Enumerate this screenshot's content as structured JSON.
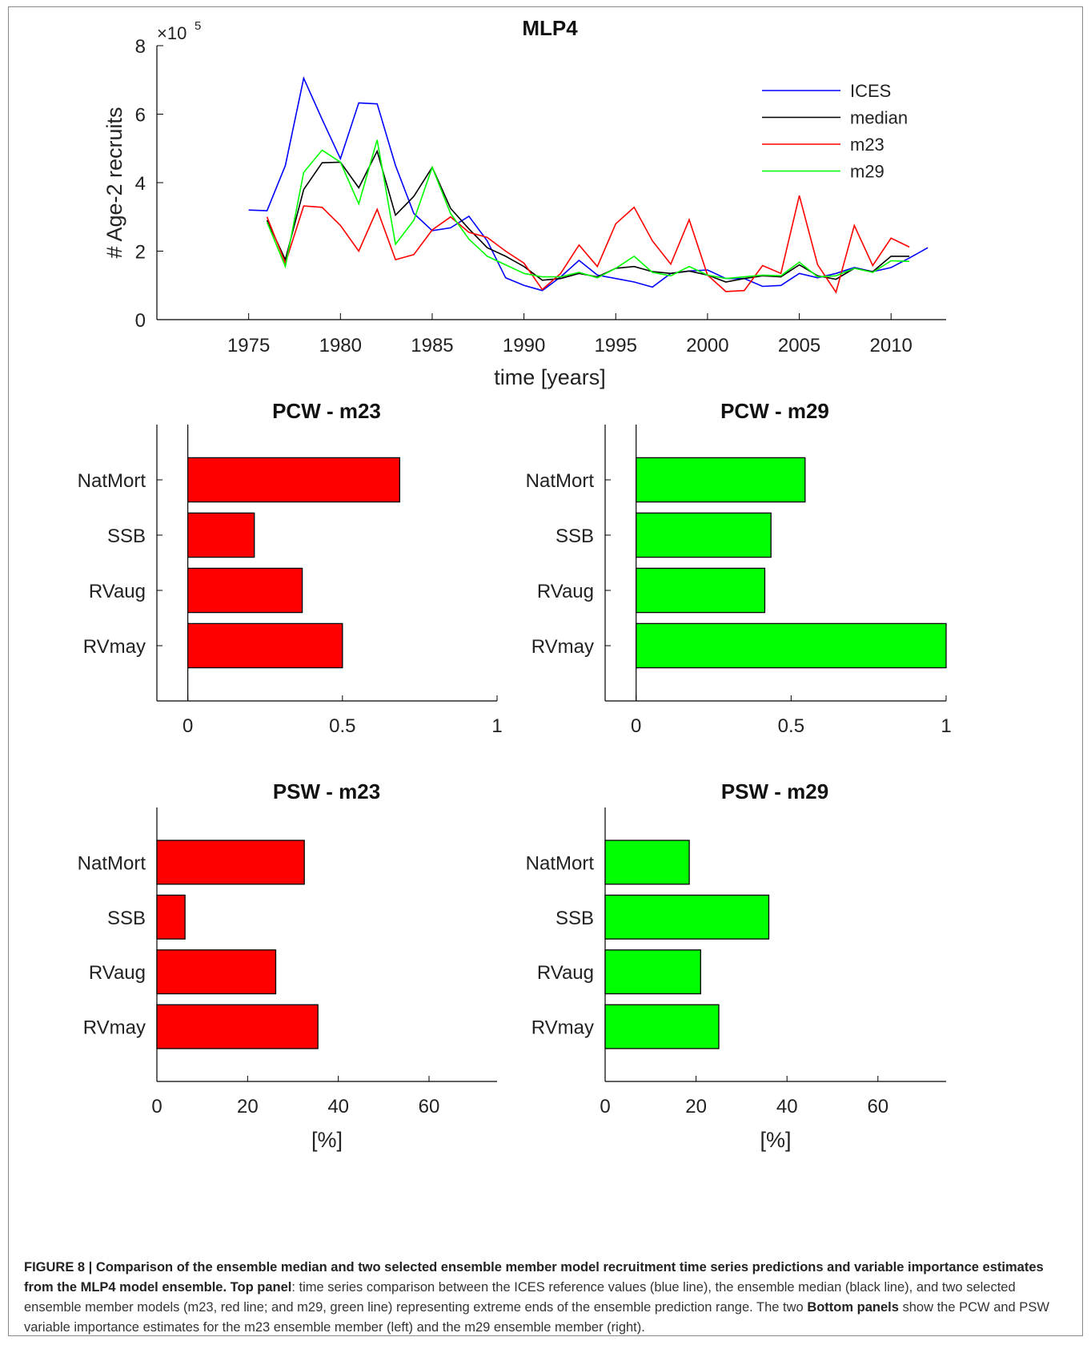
{
  "chart_data": [
    {
      "type": "line",
      "title": "MLP4",
      "xlabel": "time [years]",
      "ylabel": "# Age-2 recruits",
      "y_multiplier": "×10",
      "y_multiplier_exp": "5",
      "xlim": [
        1970,
        2013
      ],
      "ylim": [
        0,
        8
      ],
      "xticks": [
        1975,
        1980,
        1985,
        1990,
        1995,
        2000,
        2005,
        2010
      ],
      "yticks": [
        0,
        2,
        4,
        6,
        8
      ],
      "legend_position": "top-right",
      "series": [
        {
          "name": "ICES",
          "color": "#0000ff",
          "x": [
            1975,
            1976,
            1977,
            1978,
            1979,
            1980,
            1981,
            1982,
            1983,
            1984,
            1985,
            1986,
            1987,
            1988,
            1989,
            1990,
            1991,
            1992,
            1993,
            1994,
            1995,
            1996,
            1997,
            1998,
            1999,
            2000,
            2001,
            2002,
            2003,
            2004,
            2005,
            2006,
            2007,
            2008,
            2009,
            2010,
            2011,
            2012
          ],
          "y": [
            3.2,
            3.18,
            4.5,
            7.05,
            5.85,
            4.7,
            6.33,
            6.3,
            4.5,
            3.1,
            2.6,
            2.68,
            3.02,
            2.3,
            1.22,
            1.0,
            0.85,
            1.25,
            1.73,
            1.3,
            1.2,
            1.1,
            0.95,
            1.35,
            1.42,
            1.45,
            1.2,
            1.2,
            0.97,
            1.0,
            1.35,
            1.22,
            1.35,
            1.52,
            1.4,
            1.52,
            1.8,
            2.1
          ]
        },
        {
          "name": "median",
          "color": "#000000",
          "x": [
            1976,
            1977,
            1978,
            1979,
            1980,
            1981,
            1982,
            1983,
            1984,
            1985,
            1986,
            1987,
            1988,
            1989,
            1990,
            1991,
            1992,
            1993,
            1994,
            1995,
            1996,
            1997,
            1998,
            1999,
            2000,
            2001,
            2002,
            2003,
            2004,
            2005,
            2006,
            2007,
            2008,
            2009,
            2010,
            2011
          ],
          "y": [
            2.9,
            1.75,
            3.8,
            4.58,
            4.6,
            3.85,
            4.92,
            3.05,
            3.6,
            4.45,
            3.25,
            2.65,
            2.1,
            1.85,
            1.55,
            1.15,
            1.2,
            1.35,
            1.25,
            1.5,
            1.55,
            1.4,
            1.35,
            1.42,
            1.3,
            1.1,
            1.2,
            1.28,
            1.25,
            1.6,
            1.28,
            1.18,
            1.5,
            1.4,
            1.85,
            1.85
          ]
        },
        {
          "name": "m23",
          "color": "#ff0000",
          "x": [
            1976,
            1977,
            1978,
            1979,
            1980,
            1981,
            1982,
            1983,
            1984,
            1985,
            1986,
            1987,
            1988,
            1989,
            1990,
            1991,
            1992,
            1993,
            1994,
            1995,
            1996,
            1997,
            1998,
            1999,
            2000,
            2001,
            2002,
            2003,
            2004,
            2005,
            2006,
            2007,
            2008,
            2009,
            2010,
            2011
          ],
          "y": [
            3.0,
            1.65,
            3.32,
            3.28,
            2.75,
            2.0,
            3.22,
            1.75,
            1.9,
            2.62,
            3.0,
            2.55,
            2.4,
            2.0,
            1.65,
            0.88,
            1.35,
            2.18,
            1.55,
            2.8,
            3.28,
            2.3,
            1.62,
            2.92,
            1.3,
            0.82,
            0.85,
            1.58,
            1.35,
            3.62,
            1.6,
            0.8,
            2.75,
            1.58,
            2.38,
            2.12
          ]
        },
        {
          "name": "m29",
          "color": "#00ff00",
          "x": [
            1976,
            1977,
            1978,
            1979,
            1980,
            1981,
            1982,
            1983,
            1984,
            1985,
            1986,
            1987,
            1988,
            1989,
            1990,
            1991,
            1992,
            1993,
            1994,
            1995,
            1996,
            1997,
            1998,
            1999,
            2000,
            2001,
            2002,
            2003,
            2004,
            2005,
            2006,
            2007,
            2008,
            2009,
            2010,
            2011
          ],
          "y": [
            2.85,
            1.55,
            4.3,
            4.95,
            4.6,
            3.38,
            5.25,
            2.2,
            2.9,
            4.45,
            3.1,
            2.35,
            1.85,
            1.6,
            1.35,
            1.25,
            1.25,
            1.38,
            1.22,
            1.5,
            1.85,
            1.38,
            1.28,
            1.55,
            1.3,
            1.2,
            1.25,
            1.3,
            1.28,
            1.68,
            1.25,
            1.28,
            1.5,
            1.38,
            1.72,
            1.7
          ]
        }
      ]
    },
    {
      "type": "bar",
      "orientation": "horizontal",
      "title": "PCW - m23",
      "categories": [
        "NatMort",
        "SSB",
        "RVaug",
        "RVmay"
      ],
      "values": [
        0.685,
        0.215,
        0.37,
        0.5
      ],
      "xlim": [
        -0.1,
        1
      ],
      "xticks": [
        "0",
        "0.5",
        "1"
      ],
      "xtick_values": [
        0,
        0.5,
        1
      ],
      "xlabel": "",
      "color": "#ff0000"
    },
    {
      "type": "bar",
      "orientation": "horizontal",
      "title": "PCW - m29",
      "categories": [
        "NatMort",
        "SSB",
        "RVaug",
        "RVmay"
      ],
      "values": [
        0.545,
        0.435,
        0.415,
        1.0
      ],
      "xlim": [
        -0.1,
        1
      ],
      "xticks": [
        "0",
        "0.5",
        "1"
      ],
      "xtick_values": [
        0,
        0.5,
        1
      ],
      "xlabel": "",
      "color": "#00ff00"
    },
    {
      "type": "bar",
      "orientation": "horizontal",
      "title": "PSW - m23",
      "categories": [
        "NatMort",
        "SSB",
        "RVaug",
        "RVmay"
      ],
      "values": [
        32.5,
        6.2,
        26.2,
        35.5
      ],
      "xlim": [
        0,
        75
      ],
      "xticks": [
        "0",
        "20",
        "40",
        "60"
      ],
      "xtick_values": [
        0,
        20,
        40,
        60
      ],
      "xlabel": "[%]",
      "color": "#ff0000"
    },
    {
      "type": "bar",
      "orientation": "horizontal",
      "title": "PSW - m29",
      "categories": [
        "NatMort",
        "SSB",
        "RVaug",
        "RVmay"
      ],
      "values": [
        18.5,
        36.0,
        21.0,
        25.0
      ],
      "xlim": [
        0,
        75
      ],
      "xticks": [
        "0",
        "20",
        "40",
        "60"
      ],
      "xtick_values": [
        0,
        20,
        40,
        60
      ],
      "xlabel": "[%]",
      "color": "#00ff00"
    }
  ],
  "caption": {
    "label": "FIGURE 8 | Comparison of the ensemble median and two selected ensemble member model recruitment time series predictions and variable importance estimates from the MLP4 model ensemble.",
    "top_bold": "Top panel",
    "top_text": ": time series comparison between the ICES reference values (blue line), the ensemble median (black line), and two selected ensemble member models (m23, red line; and m29, green line) representing extreme ends of the ensemble prediction range. The two",
    "bottom_bold": "Bottom panels",
    "bottom_text": " show the PCW and PSW variable importance estimates for the m23 ensemble member (left) and the m29 ensemble member (right)."
  }
}
